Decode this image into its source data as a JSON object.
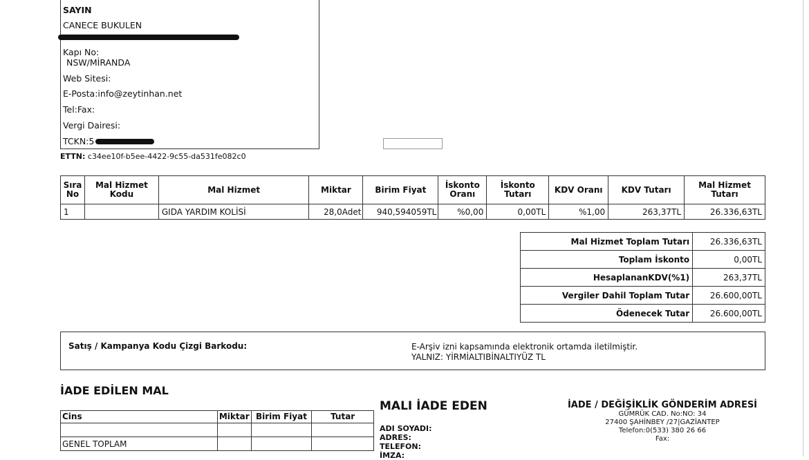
{
  "customer": {
    "title": "SAYIN",
    "name": "CANECE  BUKULEN",
    "kapi_no": "Kapı No:",
    "city": "NSW/MİRANDA",
    "web": "Web Sitesi:",
    "email": "E-Posta:info@zeytinhan.net",
    "tel": "Tel:Fax:",
    "vergi": "Vergi Dairesi:",
    "tckn": "TCKN:5"
  },
  "ettn": {
    "label": "ETTN:",
    "value": "c34ee10f-b5ee-4422-9c55-da531fe082c0"
  },
  "items": {
    "headers": [
      "Sıra No",
      "Mal Hizmet Kodu",
      "Mal Hizmet",
      "Miktar",
      "Birim Fiyat",
      "İskonto Oranı",
      "İskonto Tutarı",
      "KDV Oranı",
      "KDV Tutarı",
      "Mal Hizmet Tutarı"
    ],
    "rows": [
      [
        "1",
        "",
        "GIDA YARDIM KOLİSİ",
        "28,0Adet",
        "940,594059TL",
        "%0,00",
        "0,00TL",
        "%1,00",
        "263,37TL",
        "26.336,63TL"
      ]
    ]
  },
  "totals": [
    [
      "Mal Hizmet Toplam Tutarı",
      "26.336,63TL"
    ],
    [
      "Toplam İskonto",
      "0,00TL"
    ],
    [
      "HesaplananKDV(%1)",
      "263,37TL"
    ],
    [
      "Vergiler Dahil Toplam Tutar",
      "26.600,00TL"
    ],
    [
      "Ödenecek Tutar",
      "26.600,00TL"
    ]
  ],
  "barcode": {
    "label": "Satış / Kampanya Kodu Çizgi Barkodu:",
    "note1": "E-Arşiv izni kapsamında elektronik ortamda iletilmiştir.",
    "note2": "YALNIZ: YİRMİALTIBİNALTIYÜZ TL"
  },
  "returned": {
    "title": "İADE EDİLEN MAL",
    "headers": [
      "Cins",
      "Miktar",
      "Birim Fiyat",
      "Tutar"
    ],
    "total_label": "GENEL TOPLAM"
  },
  "returner": {
    "title": "MALI İADE EDEN",
    "fields": [
      "ADI SOYADI:",
      "ADRES:",
      "TELEFON:",
      "İMZA:"
    ]
  },
  "address": {
    "title": "İADE / DEĞİŞİKLİK GÖNDERİM ADRESİ",
    "lines": [
      "GÜMRÜK CAD.  No:NO: 34",
      "27400 ŞAHİNBEY /27|GAZİANTEP",
      "Telefon:0(533) 380 26 66",
      "Fax:"
    ]
  }
}
